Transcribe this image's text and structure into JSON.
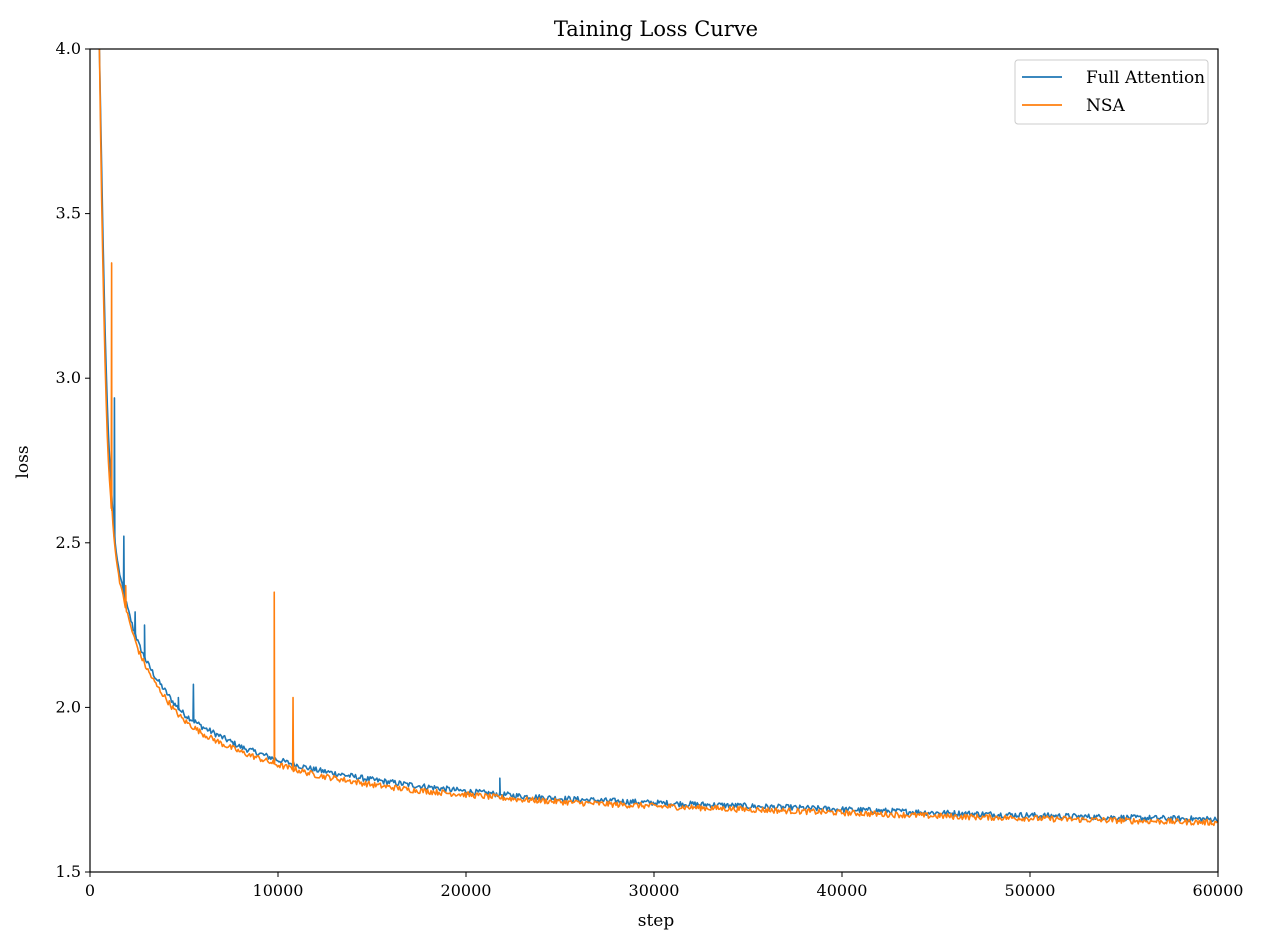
{
  "chart_data": {
    "type": "line",
    "title": "Taining Loss Curve",
    "xlabel": "step",
    "ylabel": "loss",
    "xlim": [
      0,
      60000
    ],
    "ylim": [
      1.5,
      4.0
    ],
    "xticks": [
      0,
      10000,
      20000,
      30000,
      40000,
      50000,
      60000
    ],
    "xtick_labels": [
      "0",
      "10000",
      "20000",
      "30000",
      "40000",
      "50000",
      "60000"
    ],
    "yticks": [
      1.5,
      2.0,
      2.5,
      3.0,
      3.5,
      4.0
    ],
    "ytick_labels": [
      "1.5",
      "2.0",
      "2.5",
      "3.0",
      "3.5",
      "4.0"
    ],
    "grid": false,
    "legend_position": "top-right",
    "series": [
      {
        "name": "Full Attention",
        "color": "#1f77b4",
        "x": [
          500,
          600,
          700,
          800,
          900,
          1000,
          1100,
          1200,
          1300,
          1400,
          1500,
          1700,
          2000,
          2300,
          2600,
          3000,
          3500,
          4000,
          4500,
          5000,
          6000,
          7000,
          8000,
          9000,
          10000,
          11000,
          12000,
          13000,
          14000,
          15000,
          17000,
          20000,
          23000,
          26000,
          30000,
          35000,
          40000,
          45000,
          50000,
          55000,
          60000
        ],
        "values": [
          4.0,
          3.7,
          3.4,
          3.15,
          2.95,
          2.8,
          2.7,
          2.6,
          2.52,
          2.47,
          2.43,
          2.37,
          2.3,
          2.24,
          2.19,
          2.14,
          2.09,
          2.05,
          2.01,
          1.98,
          1.94,
          1.91,
          1.88,
          1.86,
          1.84,
          1.825,
          1.81,
          1.8,
          1.79,
          1.78,
          1.765,
          1.745,
          1.73,
          1.72,
          1.71,
          1.7,
          1.69,
          1.68,
          1.672,
          1.665,
          1.66
        ],
        "spikes": [
          {
            "x": 1300,
            "y": 2.94
          },
          {
            "x": 1800,
            "y": 2.52
          },
          {
            "x": 2400,
            "y": 2.29
          },
          {
            "x": 2900,
            "y": 2.25
          },
          {
            "x": 4700,
            "y": 2.03
          },
          {
            "x": 5500,
            "y": 2.07
          },
          {
            "x": 21800,
            "y": 1.785
          }
        ]
      },
      {
        "name": "NSA",
        "color": "#ff7f0e",
        "x": [
          500,
          600,
          700,
          800,
          900,
          1000,
          1100,
          1200,
          1300,
          1400,
          1500,
          1700,
          2000,
          2300,
          2600,
          3000,
          3500,
          4000,
          4500,
          5000,
          6000,
          7000,
          8000,
          9000,
          10000,
          11000,
          12000,
          13000,
          14000,
          15000,
          17000,
          20000,
          23000,
          26000,
          30000,
          35000,
          40000,
          45000,
          50000,
          55000,
          60000
        ],
        "values": [
          4.0,
          3.6,
          3.3,
          3.05,
          2.85,
          2.72,
          2.64,
          2.57,
          2.5,
          2.45,
          2.41,
          2.35,
          2.28,
          2.22,
          2.17,
          2.12,
          2.07,
          2.03,
          1.99,
          1.96,
          1.92,
          1.89,
          1.865,
          1.845,
          1.825,
          1.81,
          1.795,
          1.785,
          1.775,
          1.765,
          1.75,
          1.735,
          1.72,
          1.71,
          1.7,
          1.69,
          1.68,
          1.67,
          1.663,
          1.656,
          1.65
        ],
        "spikes": [
          {
            "x": 1150,
            "y": 3.35
          },
          {
            "x": 1900,
            "y": 2.37
          },
          {
            "x": 9800,
            "y": 2.35
          },
          {
            "x": 10800,
            "y": 2.03
          }
        ]
      }
    ]
  }
}
